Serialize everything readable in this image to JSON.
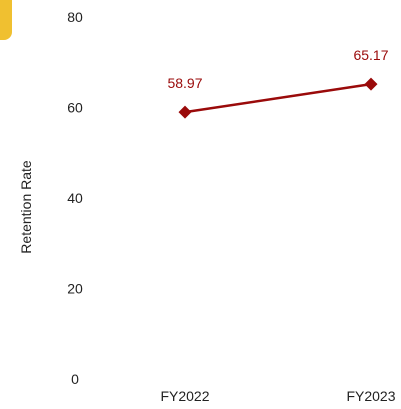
{
  "chart_data": {
    "type": "line",
    "title": "",
    "xlabel": "",
    "ylabel": "Retention Rate",
    "categories": [
      "FY2022",
      "FY2023"
    ],
    "series": [
      {
        "values": [
          58.97,
          65.17
        ],
        "data_labels": [
          "58.97",
          "65.17"
        ],
        "color": "#9a0a0a",
        "marker": "diamond"
      }
    ],
    "ylim": [
      0,
      80
    ],
    "yticks": [
      0,
      20,
      40,
      60,
      80
    ],
    "ytick_labels": [
      "0",
      "20",
      "40",
      "60",
      "80"
    ],
    "grid": false,
    "legend": "none"
  },
  "decor": {
    "tab_color": "#f0c030"
  }
}
